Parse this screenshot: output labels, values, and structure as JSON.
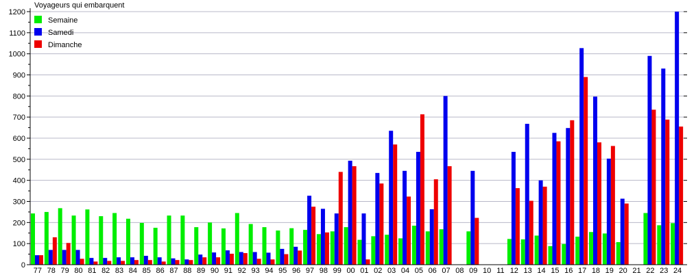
{
  "chart_data": {
    "type": "bar",
    "title": "Voyageurs qui embarquent",
    "xlabel": "",
    "ylabel": "",
    "ylim": [
      0,
      1200
    ],
    "yticks": [
      0,
      100,
      200,
      300,
      400,
      500,
      600,
      700,
      800,
      900,
      1000,
      1100,
      1200
    ],
    "grid": true,
    "legend_placement": "top-left",
    "categories": [
      "77",
      "78",
      "79",
      "80",
      "81",
      "82",
      "83",
      "84",
      "85",
      "86",
      "87",
      "88",
      "89",
      "90",
      "91",
      "92",
      "93",
      "94",
      "95",
      "96",
      "97",
      "98",
      "99",
      "00",
      "01",
      "02",
      "03",
      "04",
      "05",
      "06",
      "07",
      "08",
      "09",
      "10",
      "11",
      "12",
      "13",
      "14",
      "15",
      "16",
      "17",
      "18",
      "19",
      "20",
      "21",
      "22",
      "23",
      "24"
    ],
    "series": [
      {
        "name": "Semaine",
        "color": "#00ee00",
        "values": [
          243,
          250,
          268,
          233,
          262,
          230,
          245,
          218,
          198,
          175,
          233,
          233,
          178,
          200,
          172,
          245,
          193,
          178,
          162,
          173,
          165,
          145,
          158,
          178,
          118,
          135,
          142,
          125,
          185,
          158,
          168,
          0,
          158,
          0,
          0,
          122,
          120,
          138,
          88,
          98,
          133,
          155,
          148,
          107,
          0,
          245,
          187,
          197
        ]
      },
      {
        "name": "Samedi",
        "color": "#0000ee",
        "values": [
          45,
          70,
          70,
          70,
          32,
          32,
          35,
          35,
          42,
          35,
          30,
          25,
          48,
          58,
          68,
          60,
          60,
          57,
          75,
          85,
          327,
          265,
          243,
          493,
          243,
          435,
          635,
          445,
          535,
          263,
          800,
          0,
          445,
          0,
          0,
          535,
          668,
          400,
          625,
          648,
          1027,
          797,
          503,
          313,
          0,
          990,
          930,
          1200
        ]
      },
      {
        "name": "Dimanche",
        "color": "#ee0000",
        "values": [
          45,
          130,
          103,
          28,
          15,
          18,
          18,
          22,
          22,
          15,
          22,
          22,
          35,
          35,
          52,
          55,
          28,
          25,
          50,
          67,
          275,
          153,
          440,
          467,
          25,
          385,
          570,
          323,
          713,
          405,
          467,
          0,
          222,
          0,
          0,
          363,
          303,
          370,
          585,
          685,
          890,
          580,
          563,
          290,
          0,
          735,
          688,
          655
        ]
      }
    ]
  }
}
